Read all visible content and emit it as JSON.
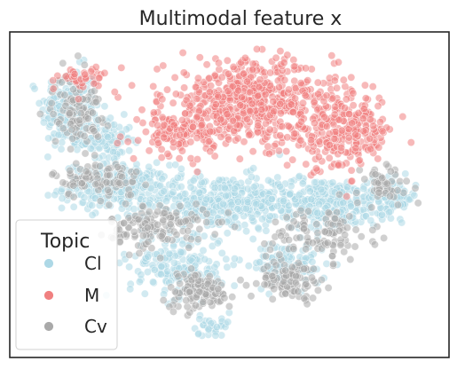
{
  "chart_data": {
    "type": "scatter",
    "title": "Multimodal feature x",
    "xlabel": "",
    "ylabel": "",
    "grid": false,
    "legend": {
      "title": "Topic",
      "placement": "bottom-left"
    },
    "series": [
      {
        "name": "Cl",
        "color": "#add8e6",
        "clusters": [
          {
            "center": [
              -0.78,
              0.55
            ],
            "spread": [
              0.12,
              0.22
            ],
            "count": 240
          },
          {
            "center": [
              -0.6,
              0.35
            ],
            "spread": [
              0.1,
              0.12
            ],
            "count": 90
          },
          {
            "center": [
              -0.55,
              0.05
            ],
            "spread": [
              0.22,
              0.12
            ],
            "count": 260
          },
          {
            "center": [
              -0.05,
              -0.05
            ],
            "spread": [
              0.3,
              0.15
            ],
            "count": 330
          },
          {
            "center": [
              0.45,
              -0.05
            ],
            "spread": [
              0.3,
              0.13
            ],
            "count": 330
          },
          {
            "center": [
              0.8,
              -0.02
            ],
            "spread": [
              0.1,
              0.1
            ],
            "count": 90
          },
          {
            "center": [
              -0.25,
              -0.45
            ],
            "spread": [
              0.2,
              0.18
            ],
            "count": 200
          },
          {
            "center": [
              0.3,
              -0.45
            ],
            "spread": [
              0.15,
              0.12
            ],
            "count": 110
          },
          {
            "center": [
              -0.1,
              -0.85
            ],
            "spread": [
              0.08,
              0.05
            ],
            "count": 30
          }
        ]
      },
      {
        "name": "M",
        "color": "#f08080",
        "clusters": [
          {
            "center": [
              0.1,
              0.6
            ],
            "spread": [
              0.35,
              0.22
            ],
            "count": 560
          },
          {
            "center": [
              0.55,
              0.4
            ],
            "spread": [
              0.22,
              0.2
            ],
            "count": 260
          },
          {
            "center": [
              -0.25,
              0.4
            ],
            "spread": [
              0.15,
              0.12
            ],
            "count": 120
          },
          {
            "center": [
              -0.72,
              0.75
            ],
            "spread": [
              0.1,
              0.07
            ],
            "count": 40
          }
        ]
      },
      {
        "name": "Cv",
        "color": "#a9a9a9",
        "clusters": [
          {
            "center": [
              -0.75,
              0.55
            ],
            "spread": [
              0.1,
              0.2
            ],
            "count": 110
          },
          {
            "center": [
              -0.65,
              0.1
            ],
            "spread": [
              0.18,
              0.1
            ],
            "count": 90
          },
          {
            "center": [
              -0.35,
              -0.2
            ],
            "spread": [
              0.2,
              0.12
            ],
            "count": 140
          },
          {
            "center": [
              -0.15,
              -0.62
            ],
            "spread": [
              0.14,
              0.1
            ],
            "count": 120
          },
          {
            "center": [
              0.3,
              -0.55
            ],
            "spread": [
              0.12,
              0.1
            ],
            "count": 100
          },
          {
            "center": [
              0.45,
              -0.25
            ],
            "spread": [
              0.22,
              0.15
            ],
            "count": 110
          },
          {
            "center": [
              0.75,
              0.05
            ],
            "spread": [
              0.12,
              0.12
            ],
            "count": 50
          }
        ]
      }
    ]
  }
}
